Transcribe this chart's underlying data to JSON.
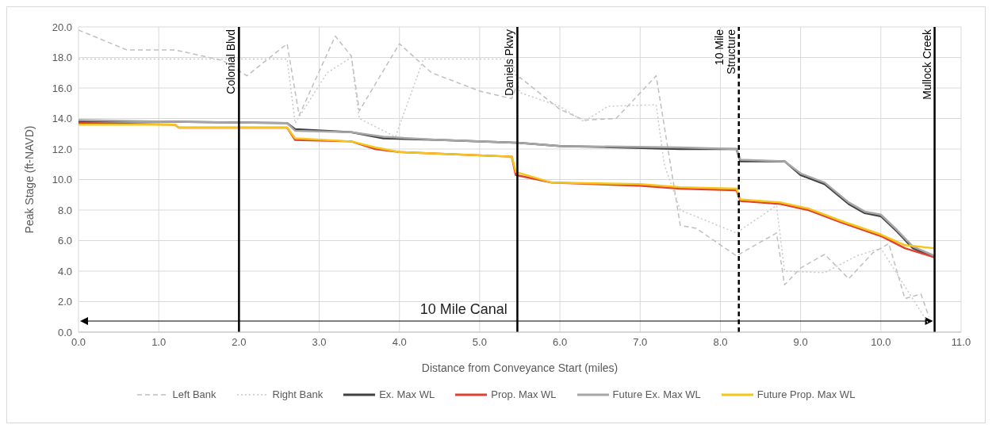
{
  "chart_data": {
    "type": "line",
    "xlabel": "Distance from Conveyance Start (miles)",
    "ylabel": "Peak Stage (ft-NAVD)",
    "xlim": [
      0,
      11
    ],
    "xticks": [
      {
        "value": 0,
        "label": "0.0"
      },
      {
        "value": 1,
        "label": "1.0"
      },
      {
        "value": 2,
        "label": "2.0"
      },
      {
        "value": 3,
        "label": "3.0"
      },
      {
        "value": 4,
        "label": "4.0"
      },
      {
        "value": 5,
        "label": "5.0"
      },
      {
        "value": 6,
        "label": "6.0"
      },
      {
        "value": 7,
        "label": "7.0"
      },
      {
        "value": 8,
        "label": "8.0"
      },
      {
        "value": 9,
        "label": "9.0"
      },
      {
        "value": 10,
        "label": "10.0"
      },
      {
        "value": 11,
        "label": "11.0"
      }
    ],
    "ylim": [
      0,
      20
    ],
    "yticks": [
      {
        "value": 0,
        "label": "0.0"
      },
      {
        "value": 2,
        "label": "2.0"
      },
      {
        "value": 4,
        "label": "4.0"
      },
      {
        "value": 6,
        "label": "6.0"
      },
      {
        "value": 8,
        "label": "8.0"
      },
      {
        "value": 10,
        "label": "10.0"
      },
      {
        "value": 12,
        "label": "12.0"
      },
      {
        "value": 14,
        "label": "14.0"
      },
      {
        "value": 16,
        "label": "16.0"
      },
      {
        "value": 18,
        "label": "18.0"
      },
      {
        "value": 20,
        "label": "20.0"
      }
    ],
    "grid": true,
    "legend": "bottom",
    "marker": "none",
    "ref_lines": [
      {
        "axis": "x",
        "value": 2.0,
        "label": "Colonial Blvd",
        "color": "#000000",
        "line_style": "solid"
      },
      {
        "axis": "x",
        "value": 5.47,
        "label": "Daniels Pkwy",
        "color": "#000000",
        "line_style": "solid"
      },
      {
        "axis": "x",
        "value": 8.23,
        "label": "10 Mile Structure",
        "color": "#000000",
        "line_style": "dashed"
      },
      {
        "axis": "x",
        "value": 10.67,
        "label": "Mullock Creek",
        "color": "#000000",
        "line_style": "solid"
      }
    ],
    "annotations": [
      "10 Mile Canal"
    ],
    "series": [
      {
        "name": "Left Bank",
        "color": "#bfbfbf",
        "line_style": "dashed",
        "x": [
          0,
          0.6,
          1.2,
          1.8,
          2.1,
          2.6,
          2.75,
          3.2,
          3.4,
          3.5,
          4.0,
          4.4,
          5.0,
          5.4,
          5.5,
          6.0,
          6.3,
          6.7,
          7.2,
          7.5,
          7.7,
          8.2,
          8.7,
          8.8,
          9.0,
          9.3,
          9.6,
          9.9,
          10.1,
          10.3,
          10.5,
          10.6
        ],
        "values": [
          19.8,
          18.5,
          18.5,
          17.8,
          16.8,
          18.9,
          14.2,
          19.4,
          18.1,
          14.5,
          18.9,
          17.0,
          15.8,
          15.3,
          16.7,
          14.6,
          13.9,
          14.0,
          16.8,
          7.0,
          6.8,
          5.0,
          6.5,
          3.1,
          4.2,
          5.1,
          3.5,
          5.2,
          5.8,
          2.2,
          2.5,
          1.0
        ]
      },
      {
        "name": "Right Bank",
        "color": "#c8c8c8",
        "line_style": "dotted",
        "x": [
          0,
          2.6,
          2.7,
          3.1,
          3.4,
          3.5,
          3.95,
          4.3,
          5.4,
          5.5,
          6.0,
          6.3,
          6.6,
          7.2,
          7.3,
          7.5,
          8.2,
          8.7,
          8.8,
          9.3,
          9.7,
          10.0,
          10.3,
          10.6
        ],
        "values": [
          17.9,
          17.9,
          13.7,
          17.0,
          18.0,
          14.0,
          12.8,
          17.9,
          17.9,
          15.7,
          14.8,
          13.8,
          14.8,
          14.9,
          11.0,
          8.0,
          6.5,
          8.3,
          4.0,
          3.9,
          5.0,
          5.5,
          3.0,
          0.5
        ]
      },
      {
        "name": "Ex. Max WL",
        "color": "#404040",
        "line_style": "solid",
        "x": [
          0,
          1.0,
          2.6,
          2.7,
          3.4,
          3.8,
          4.5,
          5.5,
          6.0,
          7.5,
          8.2,
          8.25,
          8.8,
          9.0,
          9.3,
          9.6,
          9.8,
          10.0,
          10.2,
          10.4,
          10.67
        ],
        "values": [
          13.8,
          13.8,
          13.7,
          13.3,
          13.1,
          12.7,
          12.6,
          12.4,
          12.2,
          12.0,
          12.0,
          11.2,
          11.2,
          10.3,
          9.7,
          8.4,
          7.8,
          7.6,
          6.6,
          5.5,
          4.9
        ]
      },
      {
        "name": "Prop. Max WL",
        "color": "#e0402f",
        "line_style": "solid",
        "x": [
          0,
          1.2,
          1.25,
          2.6,
          2.7,
          3.4,
          3.7,
          4.0,
          5.4,
          5.45,
          5.9,
          7.0,
          7.5,
          8.2,
          8.25,
          8.75,
          9.1,
          9.5,
          10.0,
          10.3,
          10.67
        ],
        "values": [
          13.7,
          13.6,
          13.4,
          13.4,
          12.6,
          12.5,
          12.0,
          11.8,
          11.5,
          10.3,
          9.8,
          9.6,
          9.4,
          9.3,
          8.6,
          8.4,
          8.0,
          7.2,
          6.3,
          5.5,
          4.9
        ]
      },
      {
        "name": "Future Ex. Max WL",
        "color": "#a6a6a6",
        "line_style": "solid",
        "x": [
          0,
          1.0,
          2.6,
          2.7,
          3.4,
          3.8,
          4.5,
          5.5,
          6.0,
          7.5,
          8.2,
          8.25,
          8.8,
          9.0,
          9.3,
          9.6,
          9.8,
          10.0,
          10.2,
          10.4,
          10.67
        ],
        "values": [
          13.9,
          13.8,
          13.7,
          13.2,
          13.1,
          12.8,
          12.6,
          12.4,
          12.2,
          12.1,
          12.0,
          11.3,
          11.2,
          10.4,
          9.8,
          8.5,
          7.9,
          7.7,
          6.7,
          5.6,
          5.0
        ]
      },
      {
        "name": "Future Prop. Max WL",
        "color": "#f5c518",
        "line_style": "solid",
        "x": [
          0,
          1.2,
          1.25,
          2.6,
          2.7,
          3.4,
          3.7,
          4.0,
          5.4,
          5.45,
          5.9,
          7.0,
          7.5,
          8.2,
          8.25,
          8.75,
          9.1,
          9.5,
          10.0,
          10.3,
          10.67
        ],
        "values": [
          13.6,
          13.6,
          13.4,
          13.4,
          12.7,
          12.5,
          12.1,
          11.8,
          11.5,
          10.5,
          9.8,
          9.7,
          9.5,
          9.4,
          8.7,
          8.5,
          8.1,
          7.3,
          6.4,
          5.7,
          5.5
        ]
      }
    ]
  }
}
